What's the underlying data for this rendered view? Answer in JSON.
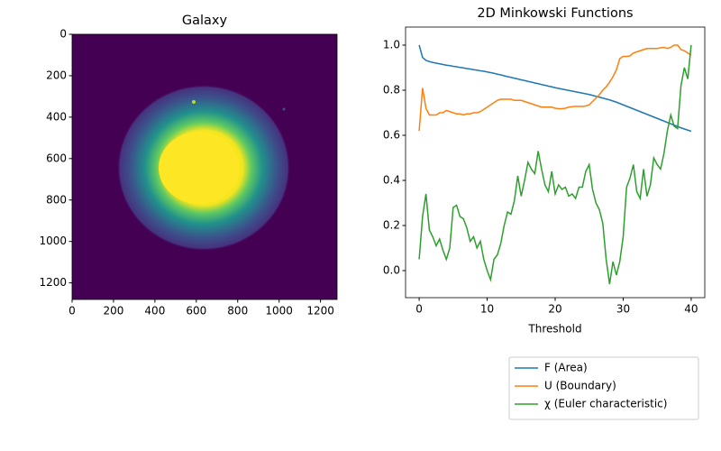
{
  "chart_data": [
    {
      "type": "image",
      "title": "Galaxy",
      "xlim": [
        0,
        1280
      ],
      "ylim": [
        1280,
        0
      ],
      "xticks": [
        0,
        200,
        400,
        600,
        800,
        1000,
        1200
      ],
      "yticks": [
        0,
        200,
        400,
        600,
        800,
        1000,
        1200
      ]
    },
    {
      "type": "line",
      "title": "2D Minkowski Functions",
      "xlabel": "Threshold",
      "xlim": [
        -2,
        42
      ],
      "ylim": [
        -0.12,
        1.08
      ],
      "xticks": [
        0,
        10,
        20,
        30,
        40
      ],
      "yticks": [
        {
          "value": 0,
          "label": "0.0"
        },
        0.2,
        0.4,
        0.6,
        0.8,
        {
          "value": 1,
          "label": "1.0"
        }
      ],
      "legend": "below-right",
      "x": [
        0,
        0.5,
        1,
        1.5,
        2,
        2.5,
        3,
        3.5,
        4,
        4.5,
        5,
        5.5,
        6,
        6.5,
        7,
        7.5,
        8,
        8.5,
        9,
        9.5,
        10,
        10.5,
        11,
        11.5,
        12,
        12.5,
        13,
        13.5,
        14,
        14.5,
        15,
        15.5,
        16,
        16.5,
        17,
        17.5,
        18,
        18.5,
        19,
        19.5,
        20,
        20.5,
        21,
        21.5,
        22,
        22.5,
        23,
        23.5,
        24,
        24.5,
        25,
        25.5,
        26,
        26.5,
        27,
        27.5,
        28,
        28.5,
        29,
        29.5,
        30,
        30.5,
        31,
        31.5,
        32,
        32.5,
        33,
        33.5,
        34,
        34.5,
        35,
        35.5,
        36,
        36.5,
        37,
        37.5,
        38,
        38.5,
        39,
        39.5,
        40
      ],
      "series": [
        {
          "name": "F (Area)",
          "color": "#1f77b4",
          "values": [
            1.0,
            0.945,
            0.932,
            0.927,
            0.923,
            0.92,
            0.917,
            0.914,
            0.911,
            0.909,
            0.906,
            0.904,
            0.901,
            0.899,
            0.896,
            0.894,
            0.891,
            0.889,
            0.886,
            0.884,
            0.881,
            0.878,
            0.875,
            0.871,
            0.868,
            0.864,
            0.86,
            0.857,
            0.853,
            0.85,
            0.846,
            0.843,
            0.839,
            0.836,
            0.832,
            0.829,
            0.825,
            0.822,
            0.818,
            0.815,
            0.811,
            0.808,
            0.805,
            0.802,
            0.799,
            0.796,
            0.793,
            0.79,
            0.787,
            0.784,
            0.781,
            0.777,
            0.773,
            0.769,
            0.765,
            0.761,
            0.757,
            0.752,
            0.747,
            0.741,
            0.735,
            0.729,
            0.723,
            0.717,
            0.711,
            0.705,
            0.699,
            0.693,
            0.687,
            0.681,
            0.675,
            0.669,
            0.663,
            0.657,
            0.651,
            0.645,
            0.639,
            0.633,
            0.628,
            0.623,
            0.618
          ]
        },
        {
          "name": "U (Boundary)",
          "color": "#ff7f0e",
          "values": [
            0.62,
            0.81,
            0.72,
            0.69,
            0.69,
            0.69,
            0.7,
            0.7,
            0.71,
            0.705,
            0.7,
            0.695,
            0.695,
            0.69,
            0.695,
            0.695,
            0.7,
            0.7,
            0.705,
            0.715,
            0.725,
            0.735,
            0.745,
            0.755,
            0.76,
            0.76,
            0.76,
            0.76,
            0.755,
            0.755,
            0.755,
            0.75,
            0.745,
            0.74,
            0.735,
            0.73,
            0.725,
            0.725,
            0.725,
            0.725,
            0.72,
            0.718,
            0.718,
            0.72,
            0.725,
            0.727,
            0.728,
            0.728,
            0.728,
            0.73,
            0.735,
            0.75,
            0.765,
            0.78,
            0.8,
            0.815,
            0.835,
            0.86,
            0.89,
            0.94,
            0.95,
            0.95,
            0.952,
            0.965,
            0.97,
            0.975,
            0.98,
            0.985,
            0.985,
            0.985,
            0.985,
            0.988,
            0.99,
            0.985,
            0.99,
            1.0,
            1.0,
            0.98,
            0.975,
            0.965,
            0.955
          ]
        },
        {
          "name": "χ (Euler characteristic)",
          "color": "#2ca02c",
          "values": [
            0.05,
            0.24,
            0.34,
            0.18,
            0.15,
            0.11,
            0.14,
            0.09,
            0.05,
            0.1,
            0.28,
            0.29,
            0.24,
            0.23,
            0.19,
            0.13,
            0.15,
            0.1,
            0.13,
            0.05,
            0.0,
            -0.04,
            0.05,
            0.07,
            0.12,
            0.2,
            0.26,
            0.25,
            0.31,
            0.42,
            0.33,
            0.4,
            0.48,
            0.45,
            0.43,
            0.53,
            0.45,
            0.38,
            0.35,
            0.44,
            0.34,
            0.38,
            0.36,
            0.37,
            0.33,
            0.34,
            0.32,
            0.37,
            0.37,
            0.44,
            0.47,
            0.36,
            0.3,
            0.27,
            0.21,
            0.05,
            -0.06,
            0.04,
            -0.02,
            0.04,
            0.15,
            0.37,
            0.41,
            0.47,
            0.35,
            0.32,
            0.45,
            0.33,
            0.38,
            0.5,
            0.47,
            0.45,
            0.52,
            0.62,
            0.69,
            0.64,
            0.63,
            0.82,
            0.9,
            0.85,
            1.0
          ]
        }
      ]
    }
  ]
}
